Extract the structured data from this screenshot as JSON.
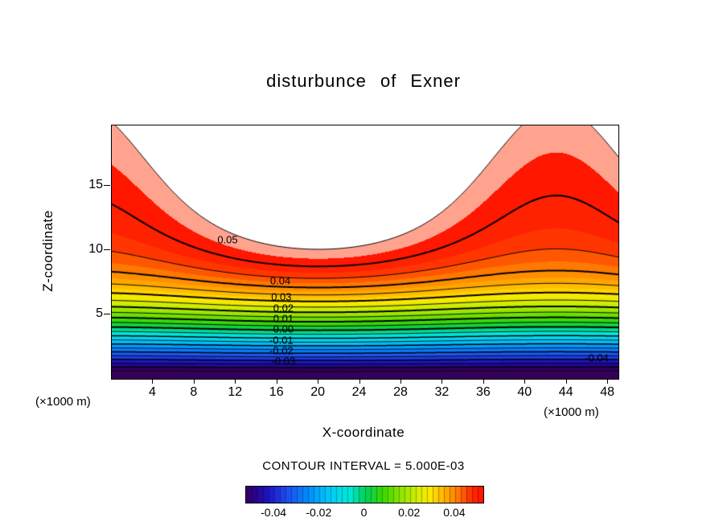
{
  "title": "disturbunce of Exner",
  "axes": {
    "xlabel": "X-coordinate",
    "ylabel": "Z-coordinate",
    "x_unit_left": "(×1000 m)",
    "x_unit_right": "(×1000 m)"
  },
  "contour_note": "CONTOUR INTERVAL = 5.000E-03",
  "chart_data": {
    "type": "contour",
    "title": "disturbunce of Exner",
    "xlabel": "X-coordinate",
    "ylabel": "Z-coordinate",
    "x_unit": "(×1000 m)",
    "z_unit": "(×1000 m)",
    "x_range": [
      0,
      49
    ],
    "z_range": [
      0,
      19.7
    ],
    "x_ticks": [
      4,
      8,
      12,
      16,
      20,
      24,
      28,
      32,
      36,
      40,
      44,
      48
    ],
    "z_ticks": [
      5,
      10,
      15
    ],
    "contour_interval": 0.005,
    "contour_interval_label": "CONTOUR INTERVAL = 5.000E-03",
    "fill_interval": 0.0025,
    "value_range": [
      -0.055,
      0.055
    ],
    "white_above": 0.055,
    "major_line_interval": 0.01,
    "negative_line_style": "dashed",
    "positive_line_style": "solid",
    "field_model": {
      "description": "v(x,z) = B(z) + amp*z*cos(2*pi*(x-x0)/wavelength), B(z) = c0 + g*z - k*ln(1+exp(-(z-zm)/w)); white where v > white_above",
      "params": {
        "c0": 0.0402,
        "g": 0.0012,
        "k": 0.0272,
        "zm": 6.2,
        "w": 1.6,
        "amp": 0.0005,
        "x0": 20,
        "wavelength": 46
      }
    },
    "contour_labels": [
      {
        "text": "0.05",
        "x": 11.2,
        "z": 10.8
      },
      {
        "text": "0.04",
        "x": 16.3,
        "z": 7.6
      },
      {
        "text": "0.03",
        "x": 16.4,
        "z": 6.4
      },
      {
        "text": "0.02",
        "x": 16.6,
        "z": 5.5
      },
      {
        "text": "0.01",
        "x": 16.6,
        "z": 4.7
      },
      {
        "text": "0.00",
        "x": 16.6,
        "z": 3.9
      },
      {
        "text": "-0.01",
        "x": 16.4,
        "z": 3.0
      },
      {
        "text": "-0.02",
        "x": 16.4,
        "z": 2.2
      },
      {
        "text": "-0.03",
        "x": 16.6,
        "z": 1.4
      },
      {
        "text": "-0.04",
        "x": 46.9,
        "z": 1.6
      }
    ],
    "palette_stops": [
      {
        "t": 0.0,
        "c": "#38004e"
      },
      {
        "t": 0.05,
        "c": "#2b0080"
      },
      {
        "t": 0.11,
        "c": "#1c14c0"
      },
      {
        "t": 0.19,
        "c": "#1e4ef0"
      },
      {
        "t": 0.28,
        "c": "#0090ff"
      },
      {
        "t": 0.36,
        "c": "#00ccf8"
      },
      {
        "t": 0.44,
        "c": "#00e8d8"
      },
      {
        "t": 0.5,
        "c": "#00d060"
      },
      {
        "t": 0.57,
        "c": "#38d800"
      },
      {
        "t": 0.64,
        "c": "#8ae400"
      },
      {
        "t": 0.7,
        "c": "#c8ee00"
      },
      {
        "t": 0.76,
        "c": "#ffe800"
      },
      {
        "t": 0.82,
        "c": "#ffb000"
      },
      {
        "t": 0.875,
        "c": "#ff7800"
      },
      {
        "t": 0.93,
        "c": "#ff2800"
      },
      {
        "t": 0.972,
        "c": "#ff1400"
      },
      {
        "t": 0.982,
        "c": "#ff9e8a"
      },
      {
        "t": 1.0,
        "c": "#ffab97"
      }
    ],
    "colorbar": {
      "range": [
        -0.0525,
        0.0525
      ],
      "segment_width": 0.0025,
      "tick_labels": [
        "-0.04",
        "-0.02",
        "0",
        "0.02",
        "0.04"
      ],
      "tick_values": [
        -0.04,
        -0.02,
        0,
        0.02,
        0.04
      ]
    },
    "line_color": "#000000",
    "background_color": "#ffffff"
  }
}
